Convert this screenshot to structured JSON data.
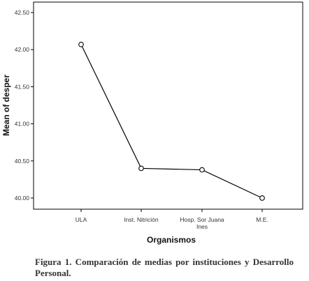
{
  "chart_data": {
    "type": "line",
    "categories": [
      "ULA",
      "Inst. Nitrición",
      "Hosp. Sor Juana Ines",
      "M.E."
    ],
    "category_lines": [
      [
        "ULA"
      ],
      [
        "Inst. Nitrición"
      ],
      [
        "Hosp. Sor Juana",
        "Ines"
      ],
      [
        "M.E."
      ]
    ],
    "values": [
      42.07,
      40.4,
      40.38,
      40.0
    ],
    "xlabel": "Organismos",
    "ylabel": "Mean of desper",
    "ylim": [
      40.0,
      42.5
    ],
    "yticks": [
      "40.00",
      "40.50",
      "41.00",
      "41.50",
      "42.00",
      "42.50"
    ],
    "grid": false,
    "markers": "open-circle",
    "line_color": "#000000"
  },
  "caption": "Figura 1. Comparación de medias por instituciones y Desarrollo Personal."
}
